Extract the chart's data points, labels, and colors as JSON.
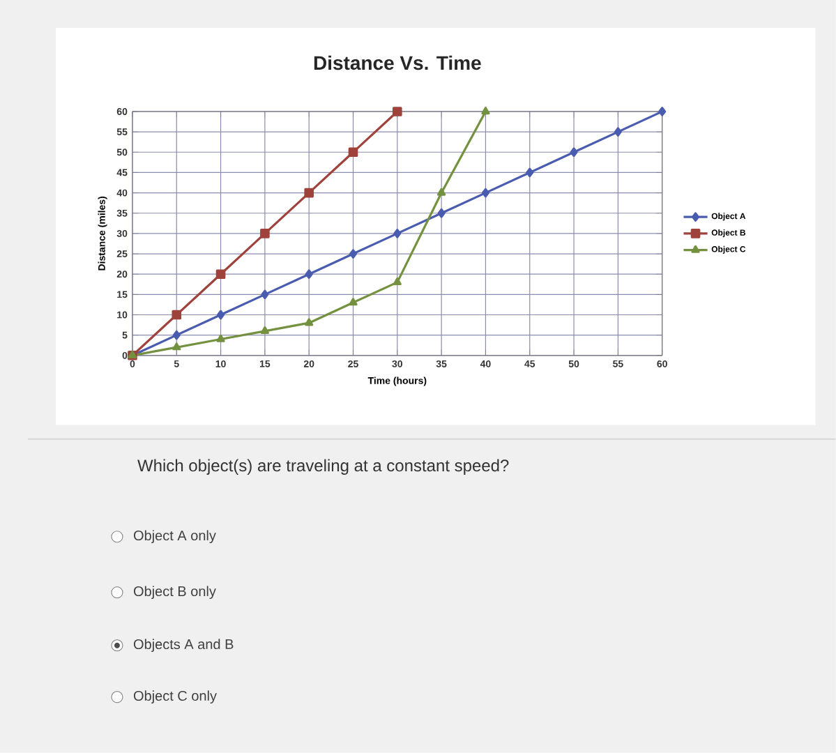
{
  "chart_data": {
    "type": "line",
    "title": "Distance Vs. Time",
    "xlabel": "Time (hours)",
    "ylabel": "Distance (miles)",
    "series": [
      {
        "name": "Object A",
        "color": "#4a5cb0",
        "marker": "diamond",
        "x": [
          0,
          5,
          10,
          15,
          20,
          25,
          30,
          35,
          40,
          45,
          50,
          55,
          60
        ],
        "values": [
          0,
          5,
          10,
          15,
          20,
          25,
          30,
          35,
          40,
          45,
          50,
          55,
          60
        ]
      },
      {
        "name": "Object B",
        "color": "#a0423c",
        "marker": "square",
        "x": [
          0,
          5,
          10,
          15,
          20,
          25,
          30
        ],
        "values": [
          0,
          10,
          20,
          30,
          40,
          50,
          60
        ]
      },
      {
        "name": "Object C",
        "color": "#74913f",
        "marker": "triangle",
        "x": [
          0,
          5,
          10,
          15,
          20,
          25,
          30,
          35,
          40
        ],
        "values": [
          0,
          2,
          4,
          6,
          8,
          13,
          18,
          40,
          60
        ]
      }
    ],
    "xlim": [
      0,
      60
    ],
    "ylim": [
      0,
      60
    ],
    "xticks": [
      0,
      5,
      10,
      15,
      20,
      25,
      30,
      35,
      40,
      45,
      50,
      55,
      60
    ],
    "yticks": [
      0,
      5,
      10,
      15,
      20,
      25,
      30,
      35,
      40,
      45,
      50,
      55,
      60
    ],
    "grid": true,
    "legend": "right",
    "annotations": [
      "Which object(s) are traveling at a constant speed?",
      "Object A only",
      "Object B only",
      "Objects A and B",
      "Object C only"
    ]
  }
}
